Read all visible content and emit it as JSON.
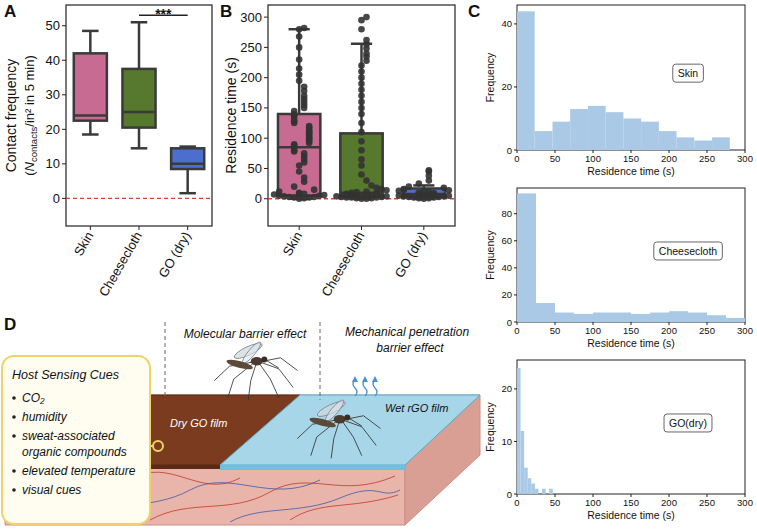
{
  "panel_labels": [
    "A",
    "B",
    "C",
    "D"
  ],
  "chart_data": [
    {
      "type": "box",
      "categories": [
        "Skin",
        "Cheesecloth",
        "GO (dry)"
      ],
      "ylabel": [
        "Contact frequency",
        "(",
        "N",
        "contacts",
        "/in² in 5 min)"
      ],
      "ylim": [
        -8,
        56
      ],
      "yticks": [
        0,
        10,
        20,
        30,
        40,
        50
      ],
      "boxes": [
        {
          "min": 18.5,
          "q1": 22.5,
          "median": 24,
          "q3": 42,
          "max": 48.5
        },
        {
          "min": 14.5,
          "q1": 20.5,
          "median": 25,
          "q3": 37.5,
          "max": 51
        },
        {
          "min": 1.5,
          "q1": 8.5,
          "median": 10,
          "q3": 14.5,
          "max": 15
        }
      ],
      "colors": [
        "#c76b92",
        "#56792e",
        "#4c6fcf"
      ],
      "hline": 0,
      "annotations": [
        {
          "text": "***",
          "from": 1,
          "to": 2,
          "y": 53
        }
      ]
    },
    {
      "type": "box",
      "categories": [
        "Skin",
        "Cheesecloth",
        "GO (dry)"
      ],
      "ylabel": "Residence time (s)",
      "ylim": [
        -45,
        320
      ],
      "yticks": [
        0,
        50,
        100,
        150,
        200,
        250,
        300
      ],
      "boxes": [
        {
          "min": 0,
          "q1": 5,
          "median": 85,
          "q3": 140,
          "max": 280
        },
        {
          "min": 0,
          "q1": 3,
          "median": 10,
          "q3": 108,
          "max": 256
        },
        {
          "min": 0,
          "q1": 3,
          "median": 8,
          "q3": 17,
          "max": 22
        }
      ],
      "points": [
        [
          0,
          1,
          2,
          2,
          3,
          3,
          4,
          5,
          5,
          6,
          7,
          8,
          8,
          10,
          12,
          15,
          20,
          28,
          35,
          45,
          55,
          60,
          65,
          70,
          75,
          78,
          80,
          85,
          88,
          90,
          92,
          95,
          98,
          100,
          102,
          105,
          108,
          110,
          112,
          115,
          118,
          120,
          125,
          128,
          130,
          135,
          138,
          140,
          145,
          150,
          155,
          160,
          165,
          170,
          178,
          185,
          195,
          205,
          215,
          230,
          250,
          268,
          280,
          282
        ],
        [
          0,
          0,
          1,
          1,
          2,
          2,
          2,
          3,
          3,
          4,
          4,
          5,
          5,
          6,
          6,
          7,
          8,
          8,
          9,
          10,
          11,
          12,
          14,
          16,
          18,
          22,
          30,
          40,
          55,
          65,
          80,
          95,
          110,
          125,
          140,
          150,
          160,
          170,
          180,
          190,
          200,
          210,
          220,
          228,
          235,
          240,
          248,
          255,
          262,
          280,
          295,
          300
        ],
        [
          0,
          1,
          1,
          2,
          2,
          3,
          3,
          4,
          4,
          5,
          5,
          6,
          6,
          7,
          8,
          9,
          10,
          11,
          12,
          13,
          14,
          15,
          16,
          18,
          20,
          25,
          30,
          38,
          45,
          47
        ]
      ],
      "colors": [
        "#c76b92",
        "#56792e",
        "#4c6fcf"
      ],
      "hline": 0
    },
    {
      "type": "histogram",
      "label": "Skin",
      "xlabel": "Residence time (s)",
      "ylabel": "Frequency",
      "bins": [
        0,
        23.3,
        46.7,
        70,
        93.3,
        116.7,
        140,
        163.3,
        186.7,
        210,
        233.3,
        256.7,
        280
      ],
      "values": [
        44,
        6,
        9,
        13,
        14,
        12,
        10,
        9,
        6,
        4,
        3,
        4
      ],
      "color": "#a9c9e6",
      "xlim": [
        0,
        300
      ],
      "xticks": [
        0,
        50,
        100,
        150,
        200,
        250,
        300
      ],
      "ylim": [
        0,
        46
      ],
      "yticks": [
        0,
        20,
        40
      ]
    },
    {
      "type": "histogram",
      "label": "Cheesecloth",
      "xlabel": "Residence time (s)",
      "ylabel": "Frequency",
      "bins": [
        0,
        25,
        50,
        75,
        100,
        125,
        150,
        175,
        200,
        225,
        250,
        275,
        300
      ],
      "values": [
        95,
        14,
        7,
        6,
        7,
        7,
        6,
        7,
        8,
        7,
        5,
        3
      ],
      "color": "#a9c9e6",
      "xlim": [
        0,
        300
      ],
      "xticks": [
        0,
        50,
        100,
        150,
        200,
        250,
        300
      ],
      "ylim": [
        0,
        99
      ],
      "yticks": [
        0,
        20,
        40,
        60,
        80
      ]
    },
    {
      "type": "histogram",
      "label": "GO(dry)",
      "xlabel": "Residence time (s)",
      "ylabel": "Frequency",
      "bins": [
        0,
        4.7,
        9.4,
        14.1,
        18.8,
        23.5,
        28.2,
        32.9,
        37.6,
        42.3,
        47
      ],
      "values": [
        24,
        12,
        5,
        3,
        2,
        1,
        0,
        1,
        0,
        1
      ],
      "color": "#a9c9e6",
      "xlim": [
        0,
        300
      ],
      "xticks": [
        0,
        50,
        100,
        150,
        200,
        250,
        300
      ],
      "ylim": [
        0,
        25.5
      ],
      "yticks": [
        0,
        10,
        20
      ]
    }
  ],
  "diagram": {
    "cues_title": "Host Sensing Cues",
    "cues": [
      [
        "CO₂"
      ],
      [
        "humidity"
      ],
      [
        "sweat-associated",
        "organic compounds"
      ],
      [
        "elevated temperature"
      ],
      [
        "visual cues"
      ]
    ],
    "left_heading": "Molecular barrier effect",
    "right_heading": [
      "Mechanical penetration",
      "barrier effect"
    ],
    "dry_film": "Dry GO film",
    "wet_film": "Wet rGO film"
  }
}
